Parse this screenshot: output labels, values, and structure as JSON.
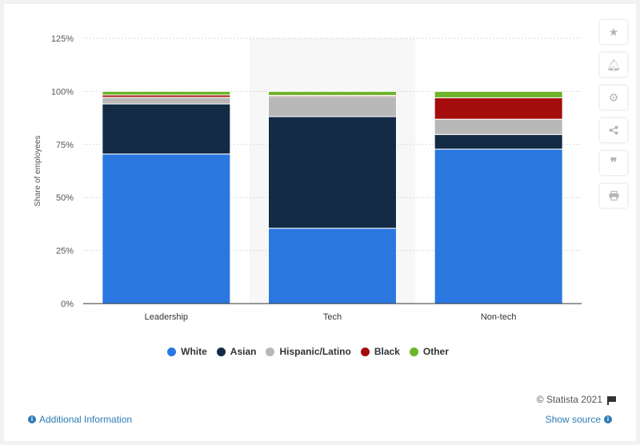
{
  "chart_data": {
    "type": "bar",
    "stacked": true,
    "categories": [
      "Leadership",
      "Tech",
      "Non-tech"
    ],
    "series": [
      {
        "name": "White",
        "color": "#2a77e0",
        "values": [
          70.5,
          35.5,
          72.8
        ]
      },
      {
        "name": "Asian",
        "color": "#132b44",
        "values": [
          23.6,
          52.6,
          6.9
        ]
      },
      {
        "name": "Hispanic/Latino",
        "color": "#b8b8b8",
        "values": [
          3.1,
          9.5,
          7.2
        ]
      },
      {
        "name": "Black",
        "color": "#a50c0c",
        "values": [
          1.1,
          0.5,
          10.1
        ]
      },
      {
        "name": "Other",
        "color": "#6fb32a",
        "values": [
          1.7,
          1.9,
          3.0
        ]
      }
    ],
    "ylabel": "Share of employees",
    "yticks": [
      "0%",
      "25%",
      "50%",
      "75%",
      "100%",
      "125%"
    ],
    "ylim": [
      0,
      125
    ],
    "grid": true,
    "highlighted_category": "Tech",
    "legend_position": "bottom"
  },
  "footer": {
    "credit": "© Statista 2021",
    "additional_info": "Additional Information",
    "show_source": "Show source"
  },
  "toolbar": {
    "icons": [
      "star-icon",
      "bell-icon",
      "gear-icon",
      "share-icon",
      "quote-icon",
      "print-icon"
    ]
  }
}
